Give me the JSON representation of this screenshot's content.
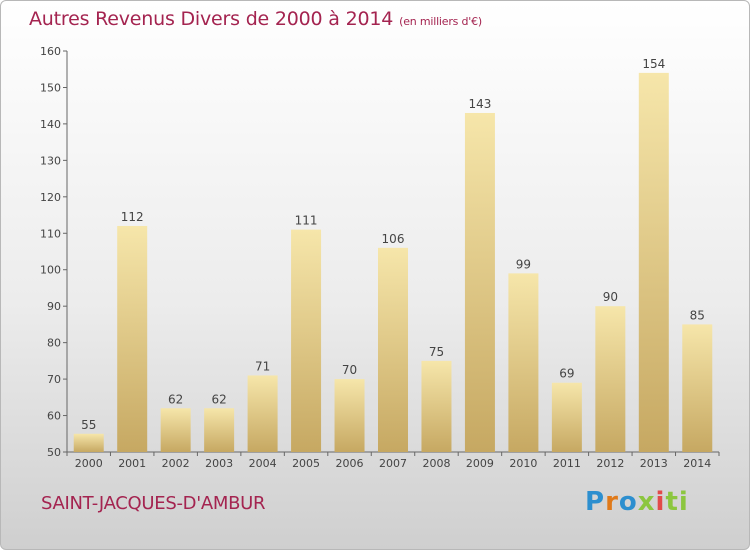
{
  "header": {
    "title": "Autres Revenus Divers de 2000 à 2014",
    "unit": "(en milliers d'€)"
  },
  "footer": {
    "commune": "SAINT-JACQUES-D'AMBUR",
    "logo": [
      "P",
      "r",
      "o",
      "x",
      "i",
      "ti"
    ]
  },
  "colors": {
    "title": "#a42450",
    "bar_light": "#f5e3a4",
    "bar_dark": "#c9ac66"
  },
  "chart_data": {
    "type": "bar",
    "title": "Autres Revenus Divers de 2000 à 2014",
    "subtitle": "(en milliers d'€)",
    "xlabel": "",
    "ylabel": "",
    "categories": [
      "2000",
      "2001",
      "2002",
      "2003",
      "2004",
      "2005",
      "2006",
      "2007",
      "2008",
      "2009",
      "2010",
      "2011",
      "2012",
      "2013",
      "2014"
    ],
    "values": [
      55,
      112,
      62,
      62,
      71,
      111,
      70,
      106,
      75,
      143,
      99,
      69,
      90,
      154,
      85
    ],
    "ylim": [
      50,
      160
    ],
    "yticks": [
      50,
      60,
      70,
      80,
      90,
      100,
      110,
      120,
      130,
      140,
      150,
      160
    ],
    "grid": false,
    "legend": "none"
  }
}
